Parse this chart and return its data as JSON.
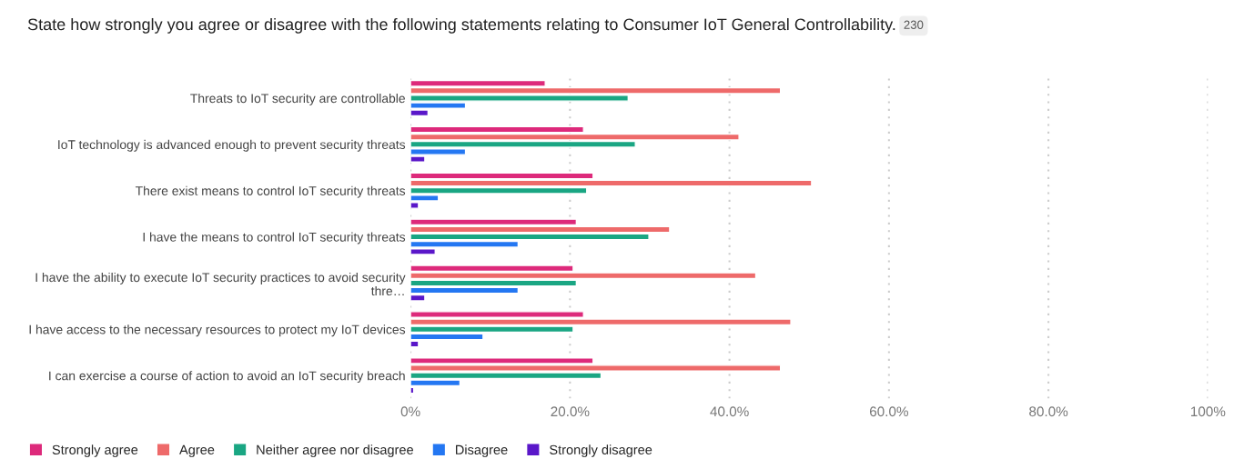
{
  "chart_data": {
    "type": "bar",
    "orientation": "horizontal",
    "title": "State how strongly you agree or disagree with the following statements relating to Consumer IoT General Controllability.",
    "annotations": [
      "230"
    ],
    "categories": [
      "Threats to IoT security are controllable",
      "IoT technology is advanced enough to prevent security threats",
      "There exist means to control IoT security threats",
      "I have the means to control IoT security threats",
      "I have the ability to execute IoT security practices to avoid security\nthre…",
      "I have access to the necessary resources to protect my IoT devices",
      "I can exercise a course of action to avoid an IoT security breach"
    ],
    "series": [
      {
        "name": "Strongly agree",
        "color": "#dd2a7b",
        "values": [
          16.9,
          21.7,
          22.9,
          20.8,
          20.4,
          21.7,
          22.9
        ]
      },
      {
        "name": "Agree",
        "color": "#ee6a6a",
        "values": [
          46.4,
          41.2,
          50.3,
          32.5,
          43.3,
          47.7,
          46.4
        ]
      },
      {
        "name": "Neither agree nor disagree",
        "color": "#1aa683",
        "values": [
          27.3,
          28.2,
          22.1,
          29.9,
          20.8,
          20.4,
          23.9
        ]
      },
      {
        "name": "Disagree",
        "color": "#2477f2",
        "values": [
          6.9,
          6.9,
          3.5,
          13.5,
          13.5,
          9.1,
          6.2
        ]
      },
      {
        "name": "Strongly disagree",
        "color": "#5a17c9",
        "values": [
          2.2,
          1.8,
          1.0,
          3.1,
          1.8,
          1.0,
          0.4
        ]
      }
    ],
    "xlim": [
      0,
      100
    ],
    "xticks": [
      {
        "value": 0,
        "label": "0%"
      },
      {
        "value": 20,
        "label": "20.0%"
      },
      {
        "value": 40,
        "label": "40.0%"
      },
      {
        "value": 60,
        "label": "60.0%"
      },
      {
        "value": 80,
        "label": "80.0%"
      },
      {
        "value": 100,
        "label": "100%"
      }
    ],
    "grid": "x",
    "legend": "bottom"
  }
}
